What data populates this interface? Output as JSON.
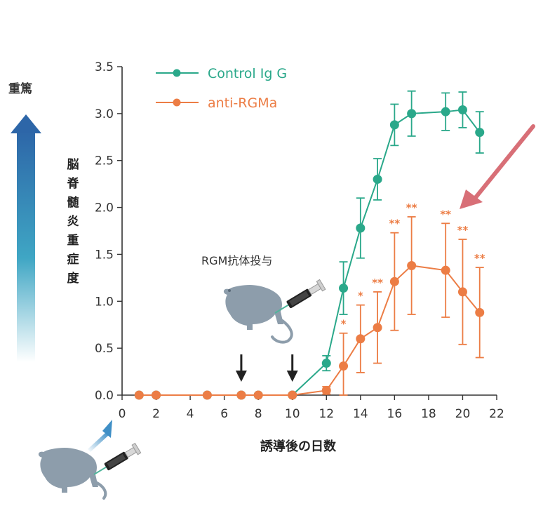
{
  "labels": {
    "severity_top": "重篤",
    "antibody_note": "RGM抗体投与"
  },
  "colors": {
    "control": "#2aa88a",
    "anti": "#ec7d45",
    "axis": "#333333",
    "arrow_pink": "#d86f77",
    "mouse": "#8d9dab",
    "severity_top": "#2d66a8",
    "severity_bottom": "#ffffff"
  },
  "icons": [
    "severity-gradient-arrow",
    "mouse-icon",
    "syringe-icon",
    "down-arrow-icon"
  ],
  "chart_data": {
    "type": "line",
    "title": "",
    "xlabel": "誘導後の日数",
    "ylabel": "脳脊髄炎重症度",
    "xlim": [
      0,
      22
    ],
    "ylim": [
      0,
      3.5
    ],
    "x_ticks": [
      0,
      2,
      4,
      6,
      8,
      10,
      12,
      14,
      16,
      18,
      20,
      22
    ],
    "y_ticks": [
      "0.0",
      "0.5",
      "1.0",
      "1.5",
      "2.0",
      "2.5",
      "3.0",
      "3.5"
    ],
    "legend_position": "top-left",
    "grid": false,
    "treatment_days": [
      7,
      10
    ],
    "series": [
      {
        "name": "Control Ig G",
        "x": [
          1,
          2,
          5,
          7,
          8,
          10,
          12,
          13,
          14,
          15,
          16,
          17,
          19,
          20,
          21
        ],
        "y": [
          0,
          0,
          0,
          0,
          0,
          0,
          0.34,
          1.14,
          1.78,
          2.3,
          2.88,
          3.0,
          3.02,
          3.04,
          2.8
        ],
        "err": [
          0,
          0,
          0,
          0,
          0,
          0,
          0.08,
          0.28,
          0.32,
          0.22,
          0.22,
          0.24,
          0.2,
          0.19,
          0.22
        ]
      },
      {
        "name": "anti-RGMa",
        "x": [
          1,
          2,
          5,
          7,
          8,
          10,
          12,
          13,
          14,
          15,
          16,
          17,
          19,
          20,
          21
        ],
        "y": [
          0,
          0,
          0,
          0,
          0,
          0,
          0.05,
          0.31,
          0.6,
          0.72,
          1.21,
          1.38,
          1.33,
          1.1,
          0.88
        ],
        "err": [
          0,
          0,
          0,
          0,
          0,
          0,
          0.04,
          0.35,
          0.36,
          0.38,
          0.52,
          0.52,
          0.5,
          0.56,
          0.48
        ],
        "significance": [
          "",
          "",
          "",
          "",
          "",
          "",
          "",
          "*",
          "*",
          "**",
          "**",
          "**",
          "**",
          "**",
          "**"
        ]
      }
    ]
  }
}
